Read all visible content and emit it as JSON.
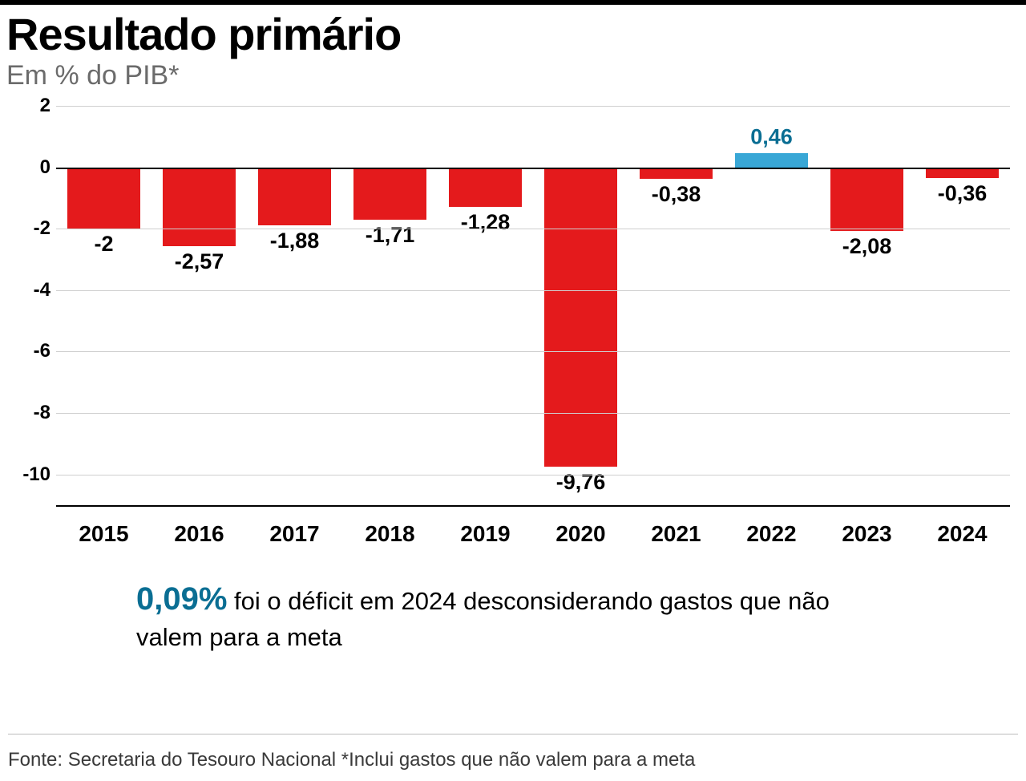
{
  "title": "Resultado primário",
  "subtitle": "Em % do PIB*",
  "chart": {
    "type": "bar",
    "ylim_min": -11,
    "ylim_max": 2,
    "yticks": [
      2,
      0,
      -2,
      -4,
      -6,
      -8,
      -10
    ],
    "categories": [
      "2015",
      "2016",
      "2017",
      "2018",
      "2019",
      "2020",
      "2021",
      "2022",
      "2023",
      "2024"
    ],
    "values": [
      -2,
      -2.57,
      -1.88,
      -1.71,
      -1.28,
      -9.76,
      -0.38,
      0.46,
      -2.08,
      -0.36
    ],
    "value_labels": [
      "-2",
      "-2,57",
      "-1,88",
      "-1,71",
      "-1,28",
      "-9,76",
      "-0,38",
      "0,46",
      "-2,08",
      "-0,36"
    ],
    "bar_colors": [
      "#e41a1c",
      "#e41a1c",
      "#e41a1c",
      "#e41a1c",
      "#e41a1c",
      "#e41a1c",
      "#e41a1c",
      "#39a7d6",
      "#e41a1c",
      "#e41a1c"
    ],
    "gridline_color": "#cfcfcf",
    "zero_line_color": "#000000",
    "tick_fontsize": 24,
    "xlabel_fontsize": 28,
    "value_fontsize": 27,
    "bar_width_pct": 76
  },
  "annotation": {
    "highlight_value": "0,09%",
    "highlight_color": "#0a6e93",
    "rest": " foi o déficit em 2024 desconsiderando gastos que não valem para a meta"
  },
  "footnote": "Fonte: Secretaria do Tesouro Nacional *Inclui gastos que não valem para a meta"
}
